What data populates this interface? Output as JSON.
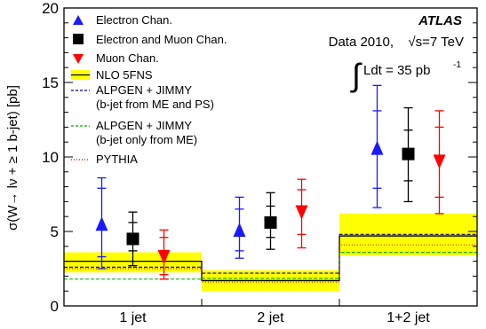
{
  "chart_data": {
    "type": "scatter",
    "ylabel": "σ(W→ lν + ≥ 1 b-jet) [pb]",
    "xlabel": "",
    "categories": [
      "1 jet",
      "2 jet",
      "1+2 jet"
    ],
    "ylim": [
      0,
      20
    ],
    "yticks": [
      0,
      5,
      10,
      15,
      20
    ],
    "annotations": {
      "experiment": "ATLAS",
      "dataset_prefix": "Data 2010,",
      "sqrt_s": "√s=7 TeV",
      "lumi_symbol": "∫",
      "lumi": "Ldt = 35 pb",
      "lumi_exp": "-1"
    },
    "measurements": [
      {
        "name": "Electron Chan.",
        "color": "#1a1aff",
        "marker": "triangle-up",
        "points": [
          {
            "category": "1 jet",
            "y": 5.4,
            "stat_low": 3.3,
            "stat_high": 7.9,
            "tot_low": 2.5,
            "tot_high": 8.6
          },
          {
            "category": "2 jet",
            "y": 5.0,
            "stat_low": 3.7,
            "stat_high": 6.5,
            "tot_low": 3.2,
            "tot_high": 7.3
          },
          {
            "category": "1+2 jet",
            "y": 10.5,
            "stat_low": 7.9,
            "stat_high": 13.1,
            "tot_low": 6.6,
            "tot_high": 14.8
          }
        ]
      },
      {
        "name": "Electron and Muon Chan.",
        "color": "#000000",
        "marker": "square",
        "points": [
          {
            "category": "1 jet",
            "y": 4.5,
            "stat_low": 3.7,
            "stat_high": 5.6,
            "tot_low": 2.7,
            "tot_high": 6.3
          },
          {
            "category": "2 jet",
            "y": 5.6,
            "stat_low": 4.6,
            "stat_high": 6.7,
            "tot_low": 3.8,
            "tot_high": 7.6
          },
          {
            "category": "1+2 jet",
            "y": 10.2,
            "stat_low": 8.4,
            "stat_high": 11.8,
            "tot_low": 7.0,
            "tot_high": 13.3
          }
        ]
      },
      {
        "name": "Muon Chan.",
        "color": "#ff0000",
        "marker": "triangle-down",
        "points": [
          {
            "category": "1 jet",
            "y": 3.4,
            "stat_low": 2.1,
            "stat_high": 4.6,
            "tot_low": 1.8,
            "tot_high": 5.1
          },
          {
            "category": "2 jet",
            "y": 6.4,
            "stat_low": 4.8,
            "stat_high": 7.8,
            "tot_low": 3.9,
            "tot_high": 8.5
          },
          {
            "category": "1+2 jet",
            "y": 9.8,
            "stat_low": 7.3,
            "stat_high": 12.0,
            "tot_low": 6.2,
            "tot_high": 13.1
          }
        ]
      }
    ],
    "predictions": [
      {
        "name": "NLO 5FNS",
        "color": "#000000",
        "band_color": "#ffff00",
        "style": "solid-band",
        "values": [
          3.0,
          1.7,
          4.7
        ],
        "band_low": [
          2.25,
          1.0,
          3.4
        ],
        "band_high": [
          3.6,
          2.4,
          6.2
        ]
      },
      {
        "name": "ALPGEN + JIMMY",
        "name_line2": "(b-jet from ME and PS)",
        "color": "#000080",
        "style": "dashed",
        "values": [
          2.6,
          2.2,
          4.8
        ]
      },
      {
        "name": "ALPGEN + JIMMY",
        "name_line2": "(b-jet only from ME)",
        "color": "#00aa00",
        "style": "dashed",
        "values": [
          1.8,
          1.85,
          3.6
        ]
      },
      {
        "name": "PYTHIA",
        "color": "#cc0000",
        "style": "dotted",
        "values": [
          2.5,
          1.6,
          4.1
        ]
      }
    ]
  }
}
